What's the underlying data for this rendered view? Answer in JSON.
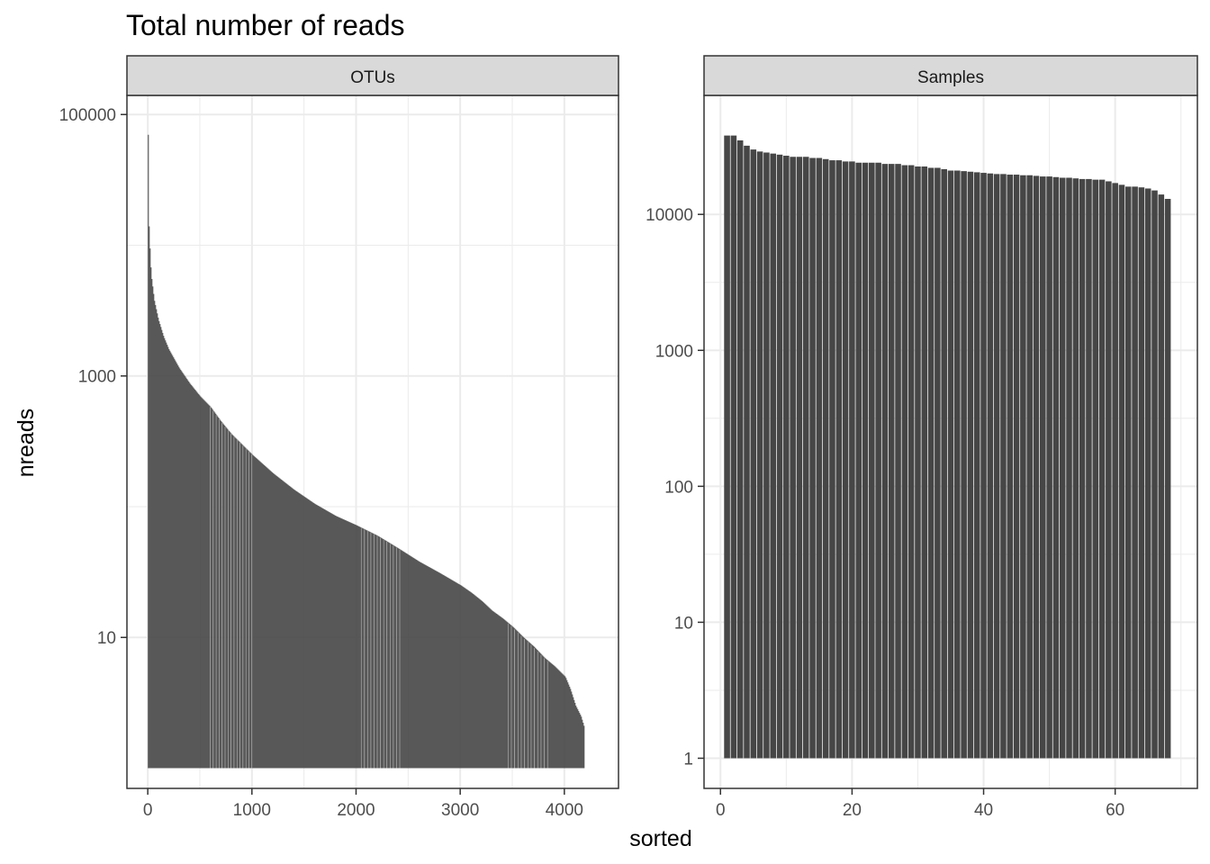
{
  "chart_data": {
    "type": "bar",
    "title": "Total number of reads",
    "xlabel": "sorted",
    "ylabel": "nreads",
    "y_scale": "log10",
    "grid": true,
    "colors": {
      "bar": "#464646",
      "strip_fill": "#d9d9d9",
      "grid": "#ebebeb",
      "panel_border": "#333333"
    },
    "facets": [
      {
        "name": "OTUs",
        "xlim": [
          -200,
          4520
        ],
        "ylim": [
          0.7,
          140000
        ],
        "x_ticks": [
          0,
          1000,
          2000,
          3000,
          4000
        ],
        "x_tick_labels": [
          "0",
          "1000",
          "2000",
          "3000",
          "4000"
        ],
        "y_ticks": [
          10,
          1000,
          100000
        ],
        "y_tick_labels": [
          "10",
          "1000",
          "100000"
        ],
        "bar_count": 4186,
        "curve": {
          "x": [
            1,
            10,
            30,
            60,
            100,
            150,
            200,
            300,
            400,
            500,
            600,
            700,
            800,
            900,
            1000,
            1200,
            1400,
            1600,
            1800,
            2000,
            2200,
            2400,
            2600,
            2800,
            3000,
            3100,
            3200,
            3300,
            3400,
            3500,
            3600,
            3700,
            3800,
            3900,
            4000,
            4050,
            4100,
            4150,
            4186
          ],
          "y": [
            70000,
            13000,
            6000,
            3800,
            2700,
            2000,
            1600,
            1150,
            880,
            700,
            580,
            450,
            360,
            300,
            250,
            180,
            135,
            105,
            85,
            72,
            60,
            48,
            38,
            31,
            25,
            22,
            19,
            16,
            14,
            12,
            10,
            8.5,
            7,
            6,
            5,
            4,
            3,
            2.5,
            2
          ]
        }
      },
      {
        "name": "Samples",
        "xlim": [
          -2.5,
          72.5
        ],
        "ylim": [
          0.6,
          75000
        ],
        "x_ticks": [
          0,
          20,
          40,
          60
        ],
        "x_tick_labels": [
          "0",
          "20",
          "40",
          "60"
        ],
        "y_ticks": [
          1,
          10,
          100,
          1000,
          10000
        ],
        "y_tick_labels": [
          "1",
          "10",
          "100",
          "1000",
          "10000"
        ],
        "x": [
          1,
          2,
          3,
          4,
          5,
          6,
          7,
          8,
          9,
          10,
          11,
          12,
          13,
          14,
          15,
          16,
          17,
          18,
          19,
          20,
          21,
          22,
          23,
          24,
          25,
          26,
          27,
          28,
          29,
          30,
          31,
          32,
          33,
          34,
          35,
          36,
          37,
          38,
          39,
          40,
          41,
          42,
          43,
          44,
          45,
          46,
          47,
          48,
          49,
          50,
          51,
          52,
          53,
          54,
          55,
          56,
          57,
          58,
          59,
          60,
          61,
          62,
          63,
          64,
          65,
          66,
          67,
          68
        ],
        "values": [
          38000,
          38000,
          35000,
          32000,
          30000,
          29000,
          28500,
          28000,
          27500,
          27000,
          26500,
          26500,
          26500,
          26000,
          26000,
          25500,
          25000,
          25000,
          24500,
          24500,
          24000,
          24000,
          24000,
          24000,
          23500,
          23500,
          23500,
          23000,
          23000,
          22500,
          22500,
          22000,
          22000,
          21500,
          21000,
          21000,
          20800,
          20600,
          20400,
          20200,
          20000,
          19800,
          19800,
          19600,
          19600,
          19400,
          19400,
          19200,
          19000,
          19000,
          18800,
          18600,
          18600,
          18400,
          18200,
          18200,
          18000,
          18000,
          17500,
          17000,
          16500,
          16000,
          16000,
          15800,
          15500,
          15000,
          14000,
          13000
        ]
      }
    ]
  }
}
